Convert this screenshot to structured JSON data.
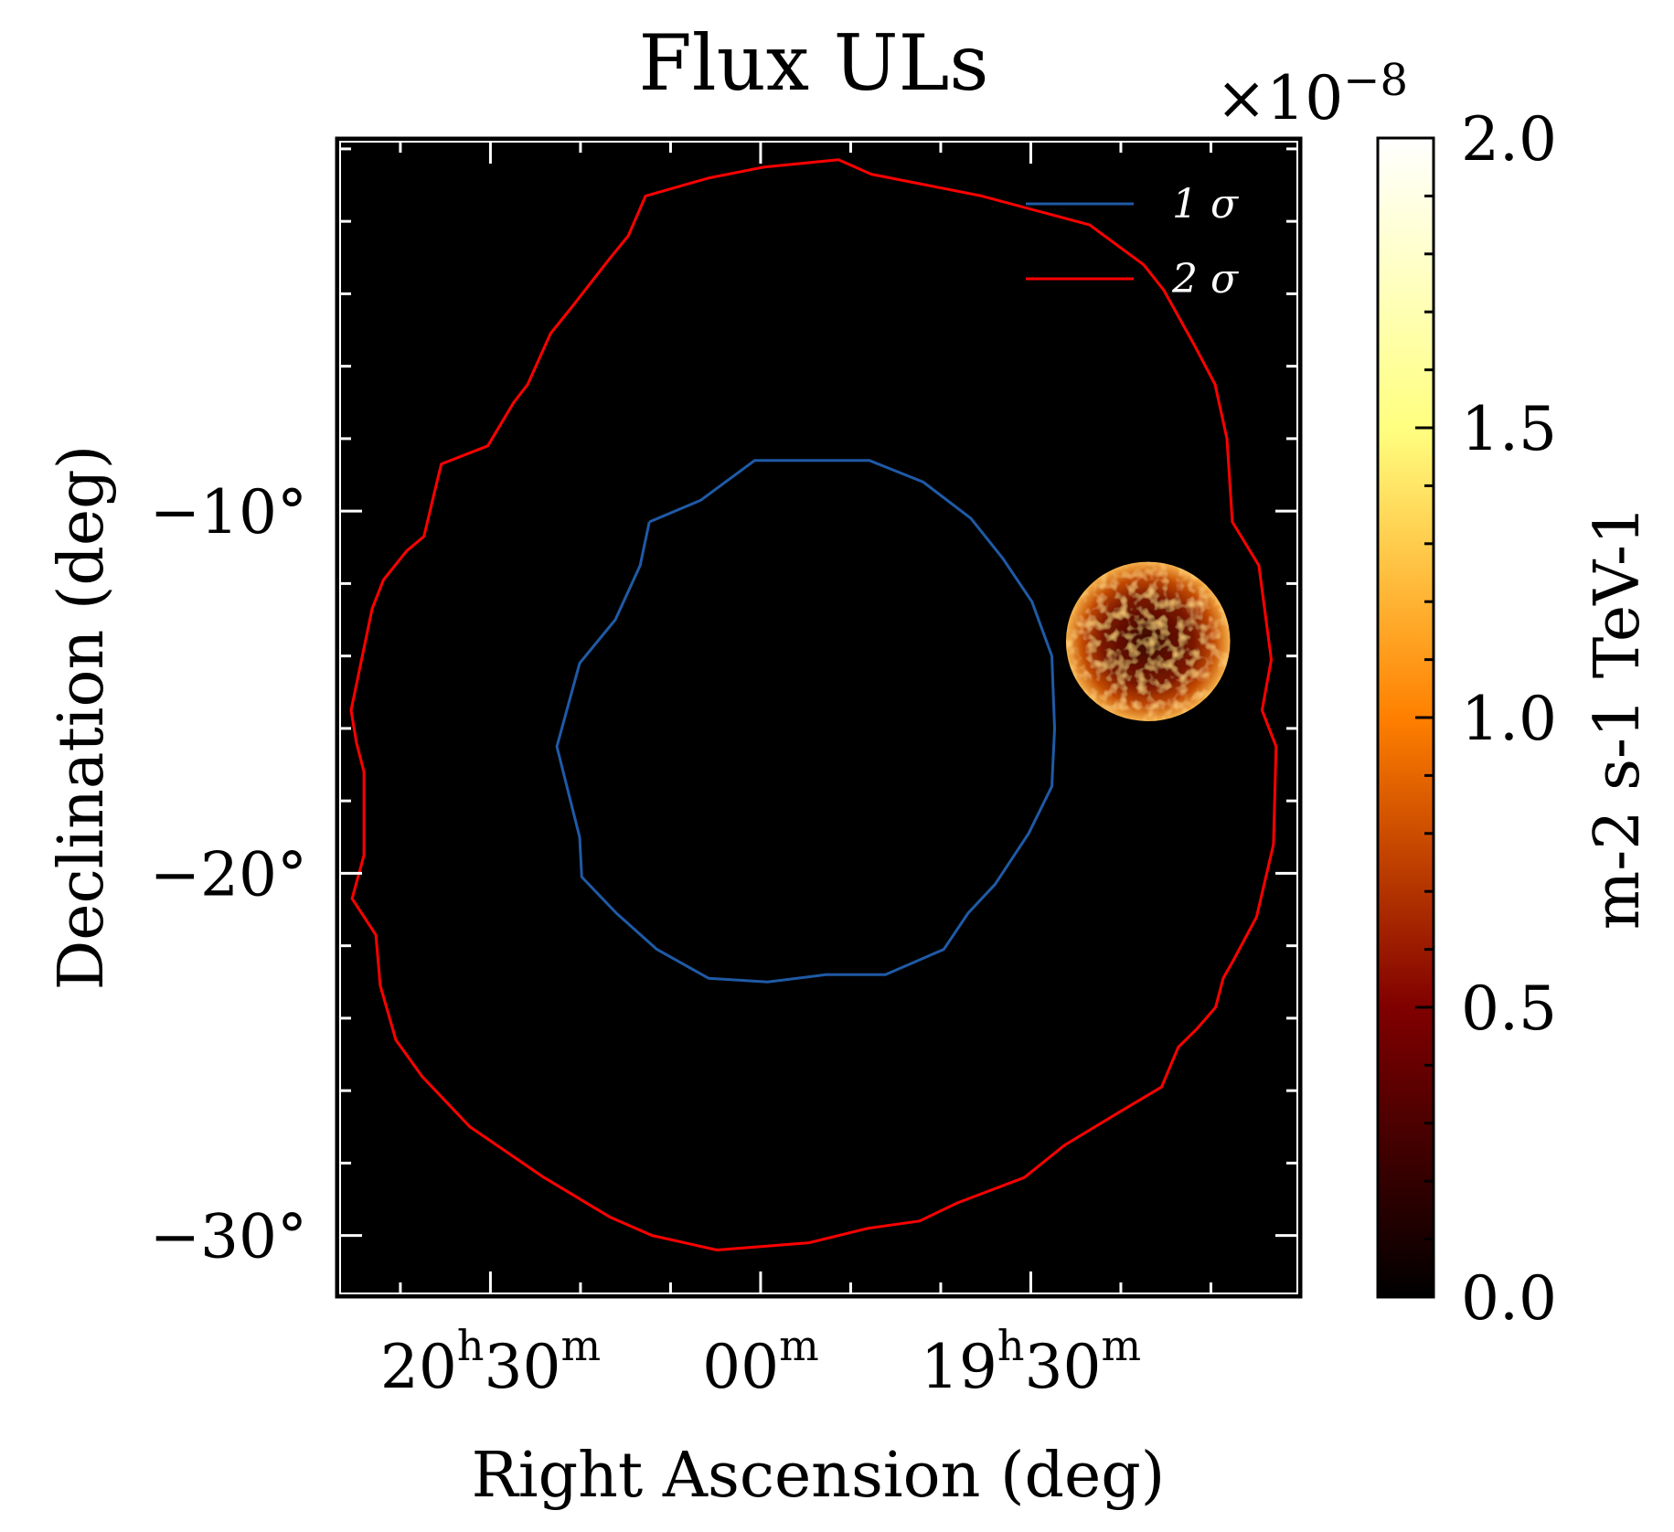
{
  "chart_data": {
    "type": "heatmap",
    "title": "Flux ULs",
    "xlabel": "Right Ascension (deg)",
    "ylabel": "Declination (deg)",
    "x_ticks": [
      {
        "ra_h": 20.5,
        "h": "20",
        "m": "30"
      },
      {
        "ra_h": 20.0,
        "h": "",
        "m": "00"
      },
      {
        "ra_h": 19.5,
        "h": "19",
        "m": "30"
      }
    ],
    "x_range_hours": [
      20.785,
      19.0
    ],
    "y_ticks": [
      {
        "value": -10,
        "label": "−10°"
      },
      {
        "value": -20,
        "label": "−20°"
      },
      {
        "value": -30,
        "label": "−30°"
      }
    ],
    "y_range": [
      -31.7,
      0.3
    ],
    "grid": false,
    "colorbar": {
      "label": "m-2 s-1 TeV-1",
      "exponent_label": "×10",
      "exponent_power": "−8",
      "range": [
        0.0,
        2.0
      ],
      "ticks": [
        {
          "value": 0.0,
          "label": "0.0"
        },
        {
          "value": 0.5,
          "label": "0.5"
        },
        {
          "value": 1.0,
          "label": "1.0"
        },
        {
          "value": 1.5,
          "label": "1.5"
        },
        {
          "value": 2.0,
          "label": "2.0"
        }
      ],
      "colormap": "afmhot"
    },
    "legend": {
      "placement": "top-right",
      "entries": [
        {
          "label": "1 σ",
          "color": "#1f5aa6"
        },
        {
          "label": "2 σ",
          "color": "#ff0000"
        }
      ]
    },
    "heatmap_blob": {
      "center_ra_h": 19.283,
      "center_dec": -13.6,
      "radius_deg": 2.2
    },
    "contours": [
      {
        "name": "1 σ",
        "color": "#1f5aa6",
        "points": [
          [
            20.206,
            -10.3
          ],
          [
            20.111,
            -9.7
          ],
          [
            20.011,
            -8.6
          ],
          [
            19.799,
            -8.6
          ],
          [
            19.699,
            -9.2
          ],
          [
            19.611,
            -10.2
          ],
          [
            19.552,
            -11.3
          ],
          [
            19.498,
            -12.5
          ],
          [
            19.461,
            -14.0
          ],
          [
            19.456,
            -16.0
          ],
          [
            19.461,
            -17.6
          ],
          [
            19.504,
            -18.9
          ],
          [
            19.566,
            -20.3
          ],
          [
            19.616,
            -21.1
          ],
          [
            19.661,
            -22.1
          ],
          [
            19.769,
            -22.8
          ],
          [
            19.879,
            -22.8
          ],
          [
            19.987,
            -23.0
          ],
          [
            20.096,
            -22.9
          ],
          [
            20.192,
            -22.1
          ],
          [
            20.267,
            -21.1
          ],
          [
            20.331,
            -20.1
          ],
          [
            20.335,
            -19.0
          ],
          [
            20.357,
            -17.7
          ],
          [
            20.377,
            -16.5
          ],
          [
            20.335,
            -14.2
          ],
          [
            20.269,
            -13.0
          ],
          [
            20.223,
            -11.5
          ],
          [
            20.206,
            -10.3
          ]
        ]
      },
      {
        "name": "2 σ",
        "color": "#ff0000",
        "points": [
          [
            19.591,
            -1.3
          ],
          [
            19.391,
            -2.1
          ],
          [
            19.291,
            -3.2
          ],
          [
            19.254,
            -3.9
          ],
          [
            19.198,
            -5.4
          ],
          [
            19.159,
            -6.5
          ],
          [
            19.137,
            -8.0
          ],
          [
            19.127,
            -10.3
          ],
          [
            19.078,
            -11.5
          ],
          [
            19.055,
            -14.1
          ],
          [
            19.072,
            -15.5
          ],
          [
            19.046,
            -16.5
          ],
          [
            19.051,
            -19.2
          ],
          [
            19.082,
            -21.2
          ],
          [
            19.125,
            -22.4
          ],
          [
            19.144,
            -22.9
          ],
          [
            19.158,
            -23.7
          ],
          [
            19.193,
            -24.3
          ],
          [
            19.227,
            -24.8
          ],
          [
            19.258,
            -25.9
          ],
          [
            19.337,
            -26.6
          ],
          [
            19.437,
            -27.5
          ],
          [
            19.512,
            -28.4
          ],
          [
            19.636,
            -29.1
          ],
          [
            19.706,
            -29.6
          ],
          [
            19.801,
            -29.8
          ],
          [
            19.911,
            -30.2
          ],
          [
            20.081,
            -30.4
          ],
          [
            20.201,
            -30.0
          ],
          [
            20.278,
            -29.5
          ],
          [
            20.401,
            -28.4
          ],
          [
            20.538,
            -27.0
          ],
          [
            20.627,
            -25.6
          ],
          [
            20.675,
            -24.6
          ],
          [
            20.704,
            -23.1
          ],
          [
            20.712,
            -21.7
          ],
          [
            20.756,
            -20.7
          ],
          [
            20.734,
            -19.5
          ],
          [
            20.734,
            -17.2
          ],
          [
            20.748,
            -16.4
          ],
          [
            20.758,
            -15.5
          ],
          [
            20.719,
            -12.7
          ],
          [
            20.698,
            -11.9
          ],
          [
            20.655,
            -11.1
          ],
          [
            20.623,
            -10.7
          ],
          [
            20.604,
            -9.5
          ],
          [
            20.591,
            -8.7
          ],
          [
            20.505,
            -8.2
          ],
          [
            20.457,
            -7.0
          ],
          [
            20.431,
            -6.5
          ],
          [
            20.389,
            -5.1
          ],
          [
            20.346,
            -4.3
          ],
          [
            20.278,
            -3.0
          ],
          [
            20.245,
            -2.4
          ],
          [
            20.213,
            -1.3
          ],
          [
            20.095,
            -0.8
          ],
          [
            19.993,
            -0.5
          ],
          [
            19.856,
            -0.3
          ],
          [
            19.795,
            -0.7
          ],
          [
            19.591,
            -1.3
          ]
        ]
      }
    ]
  }
}
